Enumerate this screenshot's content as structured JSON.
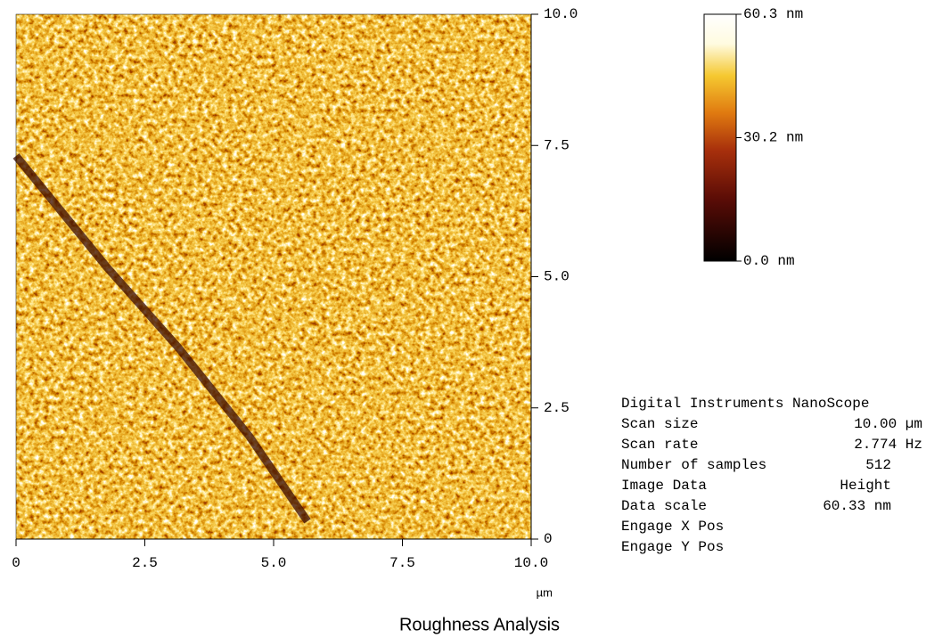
{
  "image": {
    "x_ticks": [
      "0",
      "2.5",
      "5.0",
      "7.5",
      "10.0"
    ],
    "y_ticks": [
      "10.0",
      "7.5",
      "5.0",
      "2.5",
      "0"
    ],
    "unit": "µm"
  },
  "color_bar": {
    "labels": [
      "60.3 nm",
      "30.2 nm",
      "0.0 nm"
    ]
  },
  "info": {
    "title": "Digital Instruments NanoScope",
    "rows": [
      {
        "label": "Scan size",
        "value": "10.00 µm"
      },
      {
        "label": "Scan rate",
        "value": "2.774 Hz"
      },
      {
        "label": "Number of samples",
        "value": "512"
      },
      {
        "label": "Image Data",
        "value": "Height"
      },
      {
        "label": "Data scale",
        "value": "60.33 nm"
      },
      {
        "label": "Engage X Pos"
      },
      {
        "label": "Engage Y Pos"
      }
    ]
  },
  "footer": {
    "title": "Roughness Analysis"
  }
}
